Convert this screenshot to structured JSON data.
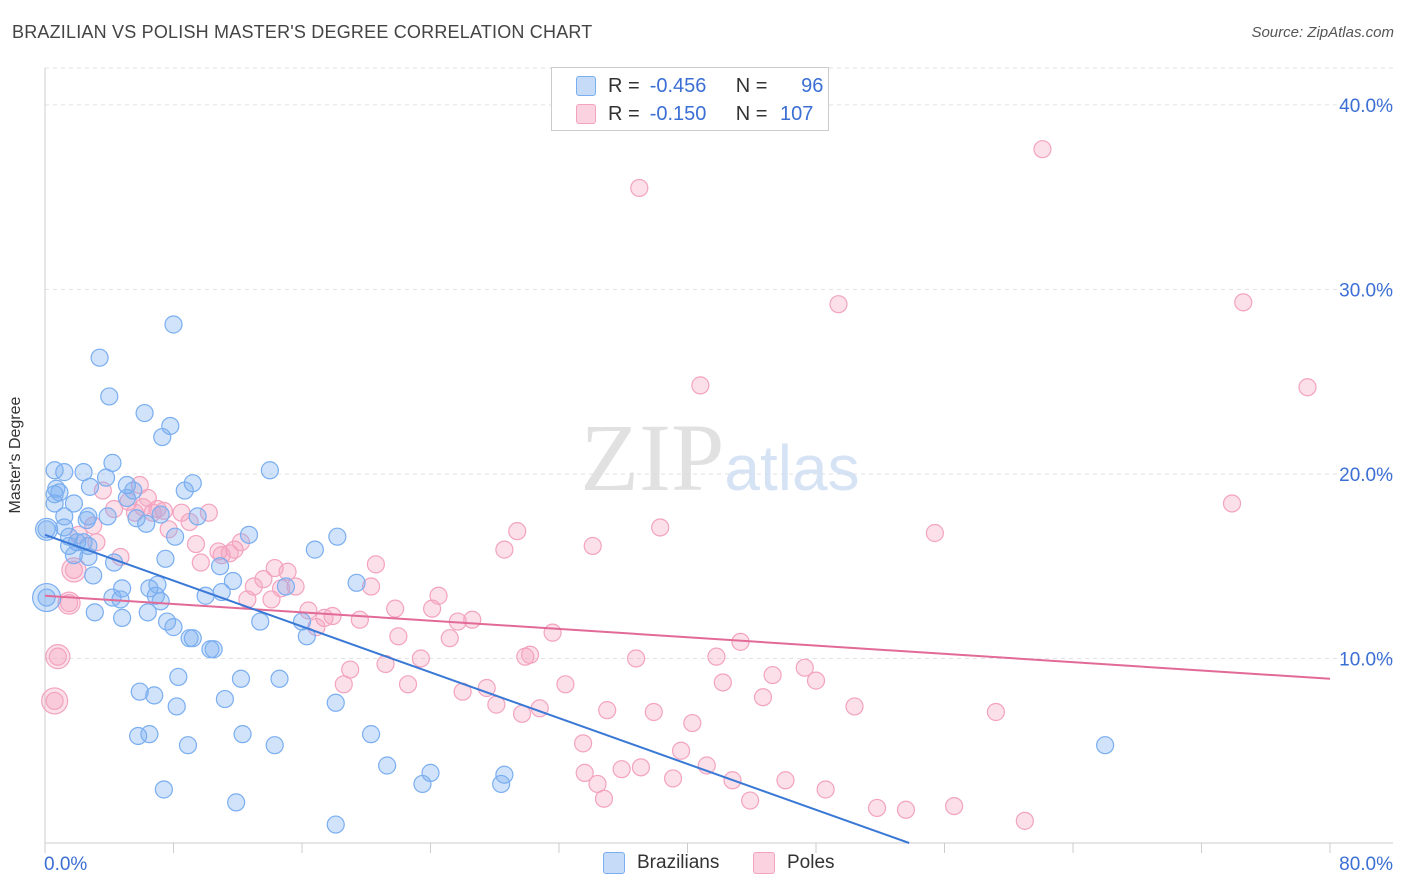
{
  "header": {
    "title": "BRAZILIAN VS POLISH MASTER'S DEGREE CORRELATION CHART",
    "source": "Source: ZipAtlas.com"
  },
  "legend_top": {
    "rows": [
      {
        "r_label": "R =",
        "r_value": "-0.456",
        "n_label": "N =",
        "n_value": "96"
      },
      {
        "r_label": "R =",
        "r_value": "-0.150",
        "n_label": "N =",
        "n_value": "107"
      }
    ]
  },
  "chart_data": {
    "type": "scatter",
    "title": "BRAZILIAN VS POLISH MASTER'S DEGREE CORRELATION CHART",
    "ylabel": "Master's Degree",
    "xlabel": "",
    "xlim": [
      0,
      80
    ],
    "ylim": [
      0,
      42
    ],
    "x_tick_labels": [
      "0.0%",
      "80.0%"
    ],
    "y_ticks": [
      10,
      20,
      30,
      40
    ],
    "y_tick_labels": [
      "10.0%",
      "20.0%",
      "30.0%",
      "40.0%"
    ],
    "grid": true,
    "legend_placement": "bottom-center",
    "watermark": "ZIPatlas",
    "colors": {
      "brazilians": "#7aaef0",
      "poles": "#f3a3bf",
      "brazilians_line": "#3a78d6",
      "poles_line": "#e26a97",
      "axis_text": "#3b6fd4"
    },
    "series": [
      {
        "name": "Brazilians",
        "r": -0.456,
        "n": 96,
        "trend": {
          "x": [
            0,
            53.8
          ],
          "y": [
            16.7,
            0
          ]
        },
        "points": [
          [
            0.1,
            17.0
          ],
          [
            0.1,
            13.3
          ],
          [
            0.6,
            18.9
          ],
          [
            0.6,
            18.4
          ],
          [
            0.6,
            20.2
          ],
          [
            0.7,
            19.2
          ],
          [
            0.9,
            19.0
          ],
          [
            1.2,
            20.1
          ],
          [
            1.2,
            17.7
          ],
          [
            1.2,
            17.1
          ],
          [
            1.5,
            16.6
          ],
          [
            1.5,
            16.1
          ],
          [
            1.8,
            18.4
          ],
          [
            1.8,
            15.6
          ],
          [
            2.0,
            16.3
          ],
          [
            2.4,
            16.3
          ],
          [
            2.4,
            20.1
          ],
          [
            2.6,
            17.5
          ],
          [
            2.7,
            17.7
          ],
          [
            2.7,
            16.1
          ],
          [
            2.7,
            15.5
          ],
          [
            2.8,
            19.3
          ],
          [
            3.0,
            14.5
          ],
          [
            3.1,
            12.5
          ],
          [
            3.4,
            26.3
          ],
          [
            3.8,
            19.8
          ],
          [
            3.9,
            17.7
          ],
          [
            4.0,
            24.2
          ],
          [
            4.2,
            20.6
          ],
          [
            4.2,
            13.3
          ],
          [
            4.3,
            15.2
          ],
          [
            4.7,
            13.2
          ],
          [
            4.8,
            12.2
          ],
          [
            4.8,
            13.8
          ],
          [
            5.1,
            19.4
          ],
          [
            5.1,
            18.7
          ],
          [
            5.5,
            19.1
          ],
          [
            5.7,
            17.6
          ],
          [
            5.8,
            5.8
          ],
          [
            5.9,
            8.2
          ],
          [
            6.2,
            23.3
          ],
          [
            6.4,
            12.5
          ],
          [
            6.5,
            5.9
          ],
          [
            6.5,
            13.8
          ],
          [
            6.8,
            8.0
          ],
          [
            6.9,
            13.4
          ],
          [
            7.0,
            14.0
          ],
          [
            7.2,
            13.1
          ],
          [
            7.2,
            17.8
          ],
          [
            7.3,
            22.0
          ],
          [
            7.4,
            2.9
          ],
          [
            7.5,
            15.4
          ],
          [
            7.6,
            12.0
          ],
          [
            7.8,
            22.6
          ],
          [
            8.0,
            28.1
          ],
          [
            8.1,
            16.6
          ],
          [
            8.2,
            7.4
          ],
          [
            8.3,
            9.0
          ],
          [
            8.7,
            19.1
          ],
          [
            8.9,
            5.3
          ],
          [
            9.0,
            11.1
          ],
          [
            9.2,
            11.1
          ],
          [
            9.2,
            19.5
          ],
          [
            9.5,
            17.7
          ],
          [
            10.0,
            13.4
          ],
          [
            10.3,
            10.5
          ],
          [
            10.5,
            10.5
          ],
          [
            10.9,
            15.0
          ],
          [
            11.0,
            13.6
          ],
          [
            11.2,
            7.8
          ],
          [
            11.7,
            14.2
          ],
          [
            11.9,
            2.2
          ],
          [
            12.2,
            8.9
          ],
          [
            12.3,
            5.9
          ],
          [
            12.7,
            16.7
          ],
          [
            13.4,
            12.0
          ],
          [
            14.0,
            20.2
          ],
          [
            14.3,
            5.3
          ],
          [
            14.6,
            8.9
          ],
          [
            15.0,
            13.9
          ],
          [
            16.0,
            12.0
          ],
          [
            16.3,
            11.2
          ],
          [
            16.8,
            15.9
          ],
          [
            18.1,
            7.6
          ],
          [
            18.2,
            16.6
          ],
          [
            19.4,
            14.1
          ],
          [
            20.3,
            5.9
          ],
          [
            21.3,
            4.2
          ],
          [
            23.5,
            3.2
          ],
          [
            24.0,
            3.8
          ],
          [
            28.4,
            3.2
          ],
          [
            28.6,
            3.7
          ],
          [
            18.1,
            1.0
          ],
          [
            8.0,
            11.7
          ],
          [
            6.3,
            17.3
          ],
          [
            66.0,
            5.3
          ]
        ]
      },
      {
        "name": "Poles",
        "r": -0.15,
        "n": 107,
        "trend": {
          "x": [
            0,
            80
          ],
          "y": [
            13.4,
            8.9
          ]
        },
        "points": [
          [
            0.6,
            7.7
          ],
          [
            0.8,
            10.1
          ],
          [
            1.5,
            13.0
          ],
          [
            1.8,
            14.8
          ],
          [
            2.1,
            16.7
          ],
          [
            3.0,
            17.2
          ],
          [
            3.2,
            16.3
          ],
          [
            3.6,
            19.1
          ],
          [
            4.3,
            18.1
          ],
          [
            4.7,
            15.5
          ],
          [
            5.2,
            18.5
          ],
          [
            5.6,
            17.9
          ],
          [
            5.9,
            19.4
          ],
          [
            6.1,
            18.2
          ],
          [
            6.4,
            18.7
          ],
          [
            6.7,
            17.9
          ],
          [
            7.0,
            18.1
          ],
          [
            7.4,
            18.0
          ],
          [
            7.7,
            17.0
          ],
          [
            8.5,
            17.9
          ],
          [
            9.0,
            17.4
          ],
          [
            9.4,
            16.2
          ],
          [
            9.7,
            15.2
          ],
          [
            10.2,
            17.9
          ],
          [
            10.8,
            15.8
          ],
          [
            11.0,
            15.6
          ],
          [
            11.5,
            15.7
          ],
          [
            11.8,
            15.9
          ],
          [
            12.2,
            16.3
          ],
          [
            12.6,
            13.2
          ],
          [
            13.0,
            13.9
          ],
          [
            13.6,
            14.3
          ],
          [
            14.1,
            13.2
          ],
          [
            14.7,
            13.8
          ],
          [
            15.1,
            14.7
          ],
          [
            15.6,
            13.9
          ],
          [
            16.4,
            12.6
          ],
          [
            16.9,
            11.7
          ],
          [
            17.4,
            12.2
          ],
          [
            17.9,
            12.3
          ],
          [
            18.6,
            8.6
          ],
          [
            19.0,
            9.4
          ],
          [
            19.6,
            12.1
          ],
          [
            20.3,
            13.9
          ],
          [
            20.6,
            15.1
          ],
          [
            21.2,
            9.7
          ],
          [
            21.8,
            12.7
          ],
          [
            22.0,
            11.2
          ],
          [
            22.6,
            8.6
          ],
          [
            23.4,
            10.0
          ],
          [
            24.1,
            12.7
          ],
          [
            24.5,
            13.4
          ],
          [
            25.2,
            11.1
          ],
          [
            25.7,
            12.0
          ],
          [
            26.0,
            8.2
          ],
          [
            26.6,
            12.1
          ],
          [
            27.5,
            8.4
          ],
          [
            28.1,
            7.5
          ],
          [
            28.6,
            15.9
          ],
          [
            29.4,
            16.9
          ],
          [
            29.7,
            7.0
          ],
          [
            29.9,
            10.1
          ],
          [
            30.2,
            10.2
          ],
          [
            30.8,
            7.3
          ],
          [
            31.6,
            11.4
          ],
          [
            32.4,
            8.6
          ],
          [
            33.5,
            5.4
          ],
          [
            33.6,
            3.8
          ],
          [
            34.1,
            16.1
          ],
          [
            34.4,
            3.2
          ],
          [
            34.8,
            2.4
          ],
          [
            35.0,
            7.2
          ],
          [
            35.9,
            4.0
          ],
          [
            36.8,
            10.0
          ],
          [
            37.1,
            4.1
          ],
          [
            37.9,
            7.1
          ],
          [
            38.3,
            17.1
          ],
          [
            39.1,
            3.5
          ],
          [
            39.6,
            5.0
          ],
          [
            40.3,
            6.5
          ],
          [
            41.2,
            4.2
          ],
          [
            41.8,
            10.1
          ],
          [
            42.2,
            8.7
          ],
          [
            42.8,
            3.4
          ],
          [
            43.3,
            10.9
          ],
          [
            43.9,
            2.3
          ],
          [
            44.7,
            7.9
          ],
          [
            45.3,
            9.1
          ],
          [
            46.1,
            3.4
          ],
          [
            47.3,
            9.5
          ],
          [
            48.0,
            8.8
          ],
          [
            48.6,
            2.9
          ],
          [
            50.4,
            7.4
          ],
          [
            51.8,
            1.9
          ],
          [
            53.6,
            1.8
          ],
          [
            55.4,
            16.8
          ],
          [
            56.6,
            2.0
          ],
          [
            59.2,
            7.1
          ],
          [
            61.0,
            1.2
          ],
          [
            37.0,
            35.5
          ],
          [
            62.1,
            37.6
          ],
          [
            49.4,
            29.2
          ],
          [
            74.6,
            29.3
          ],
          [
            40.8,
            24.8
          ],
          [
            78.6,
            24.7
          ],
          [
            73.9,
            18.4
          ],
          [
            14.3,
            14.9
          ]
        ]
      }
    ]
  },
  "legend_bottom": {
    "items": [
      {
        "label": "Brazilians"
      },
      {
        "label": "Poles"
      }
    ]
  }
}
